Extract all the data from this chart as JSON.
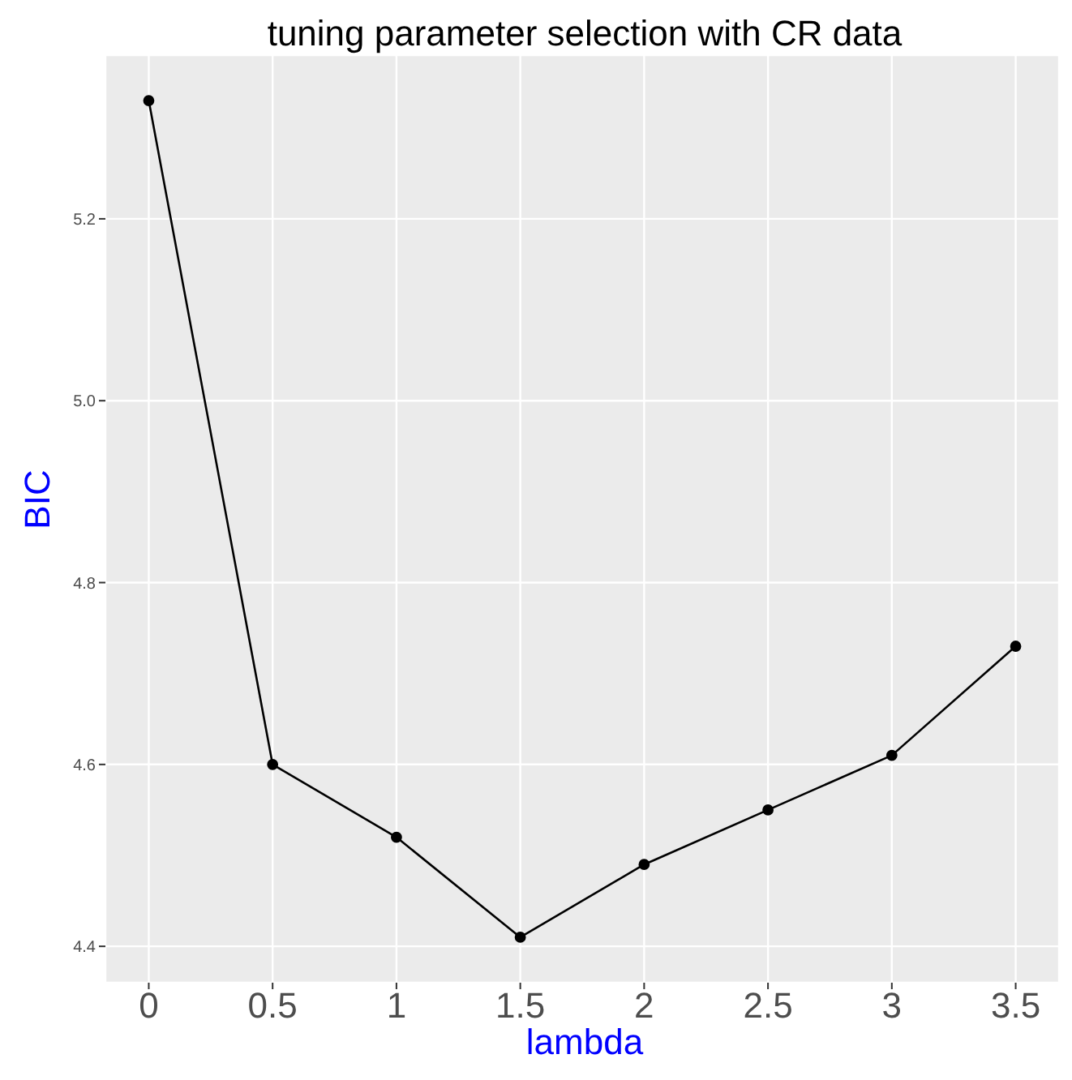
{
  "chart_data": {
    "type": "line",
    "title": "tuning parameter selection with CR data",
    "xlabel": "lambda",
    "ylabel": "BIC",
    "x": [
      0,
      0.5,
      1,
      1.5,
      2,
      2.5,
      3,
      3.5
    ],
    "series": [
      {
        "color": "#000000",
        "values": [
          5.33,
          4.6,
          4.52,
          4.41,
          4.49,
          4.55,
          4.61,
          4.73
        ]
      }
    ],
    "xlim": [
      -0.175,
      3.675
    ],
    "xticks": [
      0,
      0.5,
      1,
      1.5,
      2,
      2.5,
      3,
      3.5
    ],
    "ylim": [
      4.36,
      5.38
    ],
    "yticks": [
      4.4,
      4.6,
      4.8,
      {
        "value": 5,
        "label": "5.0"
      },
      5.2
    ],
    "grid": true,
    "marker": "circle",
    "line_style": "solid"
  }
}
